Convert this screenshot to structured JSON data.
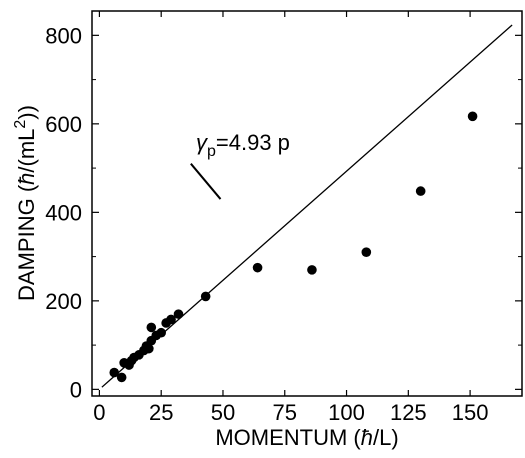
{
  "chart_data": {
    "type": "scatter",
    "xlabel": {
      "main": "MOMENTUM (",
      "italic": "ħ",
      "rest": "/L)"
    },
    "ylabel": {
      "main": "DAMPING (",
      "italic": "ħ",
      "rest": "/(mL",
      "sup": "2",
      "end": "))"
    },
    "xlim": [
      -3,
      171
    ],
    "ylim": [
      -15,
      855
    ],
    "xticks": [
      0,
      25,
      50,
      75,
      100,
      125,
      150
    ],
    "yticks": [
      0,
      200,
      400,
      600,
      800
    ],
    "grid": false,
    "points": [
      {
        "x": 6,
        "y": 38
      },
      {
        "x": 9,
        "y": 27
      },
      {
        "x": 10,
        "y": 60
      },
      {
        "x": 12,
        "y": 55
      },
      {
        "x": 13,
        "y": 65
      },
      {
        "x": 14,
        "y": 72
      },
      {
        "x": 16,
        "y": 78
      },
      {
        "x": 18,
        "y": 88
      },
      {
        "x": 19,
        "y": 98
      },
      {
        "x": 20,
        "y": 92
      },
      {
        "x": 21,
        "y": 110
      },
      {
        "x": 21,
        "y": 140
      },
      {
        "x": 23,
        "y": 122
      },
      {
        "x": 25,
        "y": 128
      },
      {
        "x": 27,
        "y": 150
      },
      {
        "x": 29,
        "y": 158
      },
      {
        "x": 32,
        "y": 170
      },
      {
        "x": 43,
        "y": 210
      },
      {
        "x": 64,
        "y": 275
      },
      {
        "x": 86,
        "y": 270
      },
      {
        "x": 108,
        "y": 310
      },
      {
        "x": 130,
        "y": 448
      },
      {
        "x": 151,
        "y": 617
      }
    ],
    "fit_line": {
      "slope": 4.93,
      "x_start": 1,
      "x_end": 167
    },
    "annotation": {
      "symbol": "γ",
      "subscript": "p",
      "rest": "=4.93 p",
      "pointer_from": {
        "x": 37,
        "y": 510
      },
      "pointer_to": {
        "x": 49,
        "y": 430
      }
    }
  }
}
